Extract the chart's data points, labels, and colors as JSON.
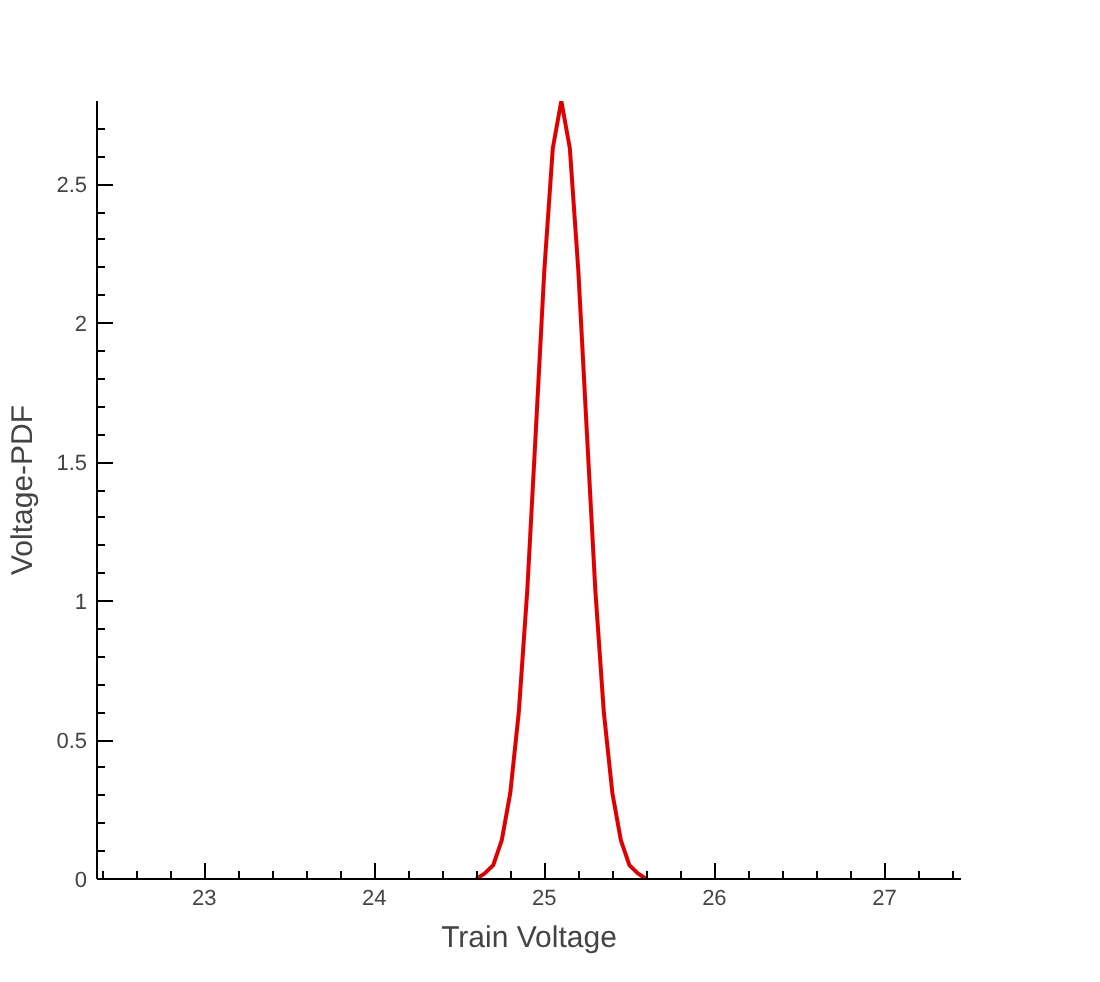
{
  "chart_data": {
    "type": "line",
    "xlabel": "Train Voltage",
    "ylabel": "Voltage-PDF",
    "xlim": [
      22.37,
      27.45
    ],
    "ylim": [
      0,
      2.8
    ],
    "xticks": [
      23,
      24,
      25,
      26,
      27
    ],
    "yticks": [
      0,
      0.5,
      1,
      1.5,
      2,
      2.5
    ],
    "grid": false,
    "marker": "none",
    "line_style": "solid",
    "series": [
      {
        "color": "#e00000",
        "x": [
          24.6,
          24.65,
          24.7,
          24.75,
          24.8,
          24.85,
          24.9,
          24.95,
          25.0,
          25.05,
          25.1,
          25.15,
          25.2,
          25.25,
          25.3,
          25.35,
          25.4,
          25.45,
          25.5,
          25.55,
          25.6
        ],
        "values": [
          0,
          0.02,
          0.05,
          0.14,
          0.31,
          0.6,
          1.04,
          1.61,
          2.19,
          2.63,
          2.8,
          2.63,
          2.19,
          1.61,
          1.04,
          0.6,
          0.31,
          0.14,
          0.05,
          0.02,
          0
        ]
      }
    ]
  }
}
